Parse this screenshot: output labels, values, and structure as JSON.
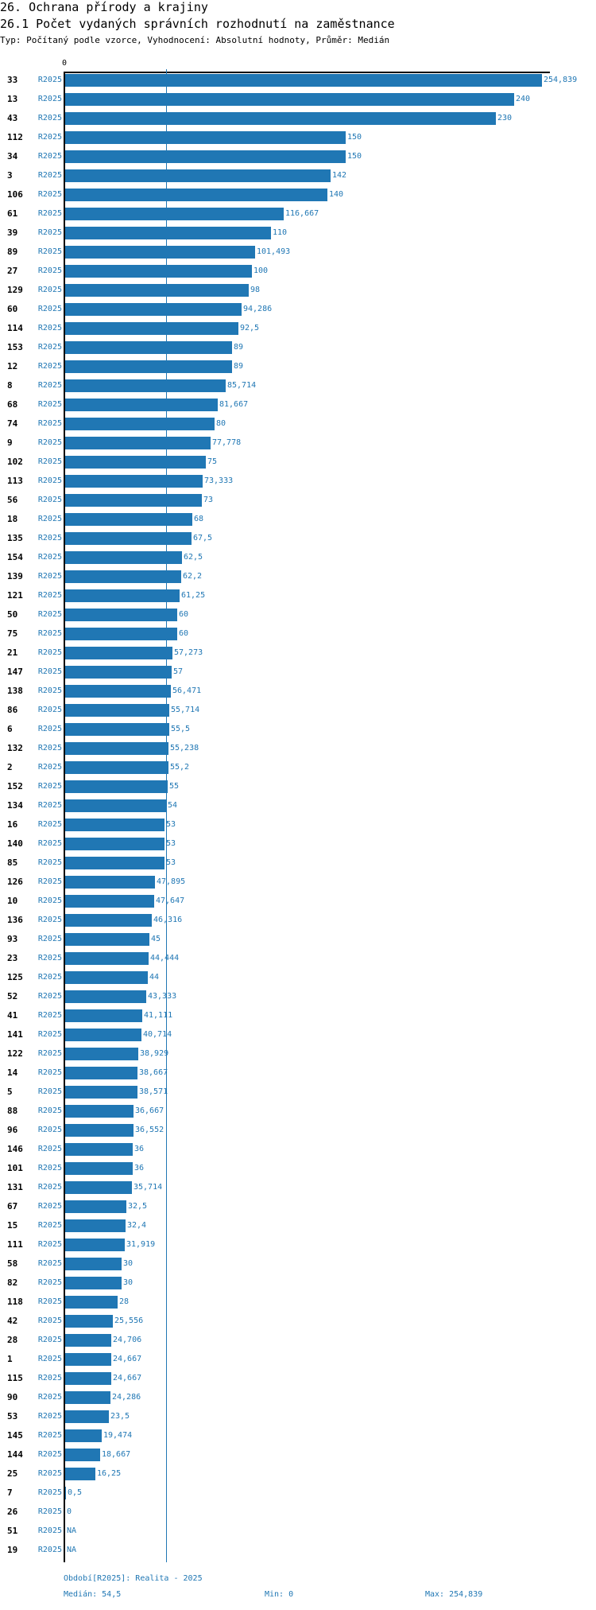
{
  "header": {
    "title": "26. Ochrana přírody a krajiny",
    "subtitle": "26.1 Počet vydaných správních rozhodnutí na zaměstnance",
    "meta": "Typ: Počítaný podle vzorce, Vyhodnocení: Absolutní hodnoty, Průměr: Medián"
  },
  "footer": {
    "period": "Období[R2025]: Realita - 2025",
    "median": "Medián: 54,5",
    "min": "Min: 0",
    "max": "Max: 254,839"
  },
  "colors": {
    "bar": "#2077b4",
    "axis": "#000000"
  },
  "chart_data": {
    "type": "bar",
    "orientation": "horizontal",
    "title": "26.1 Počet vydaných správních rozhodnutí na zaměstnance",
    "axis_tick": "0",
    "xlim": [
      0,
      254.839
    ],
    "median": 54.5,
    "min": 0,
    "max": 254.839,
    "rows": [
      {
        "id": "33",
        "period": "R2025",
        "label": "254,839"
      },
      {
        "id": "13",
        "period": "R2025",
        "label": "240"
      },
      {
        "id": "43",
        "period": "R2025",
        "label": "230"
      },
      {
        "id": "112",
        "period": "R2025",
        "label": "150"
      },
      {
        "id": "34",
        "period": "R2025",
        "label": "150"
      },
      {
        "id": "3",
        "period": "R2025",
        "label": "142"
      },
      {
        "id": "106",
        "period": "R2025",
        "label": "140"
      },
      {
        "id": "61",
        "period": "R2025",
        "label": "116,667"
      },
      {
        "id": "39",
        "period": "R2025",
        "label": "110"
      },
      {
        "id": "89",
        "period": "R2025",
        "label": "101,493"
      },
      {
        "id": "27",
        "period": "R2025",
        "label": "100"
      },
      {
        "id": "129",
        "period": "R2025",
        "label": "98"
      },
      {
        "id": "60",
        "period": "R2025",
        "label": "94,286"
      },
      {
        "id": "114",
        "period": "R2025",
        "label": "92,5"
      },
      {
        "id": "153",
        "period": "R2025",
        "label": "89"
      },
      {
        "id": "12",
        "period": "R2025",
        "label": "89"
      },
      {
        "id": "8",
        "period": "R2025",
        "label": "85,714"
      },
      {
        "id": "68",
        "period": "R2025",
        "label": "81,667"
      },
      {
        "id": "74",
        "period": "R2025",
        "label": "80"
      },
      {
        "id": "9",
        "period": "R2025",
        "label": "77,778"
      },
      {
        "id": "102",
        "period": "R2025",
        "label": "75"
      },
      {
        "id": "113",
        "period": "R2025",
        "label": "73,333"
      },
      {
        "id": "56",
        "period": "R2025",
        "label": "73"
      },
      {
        "id": "18",
        "period": "R2025",
        "label": "68"
      },
      {
        "id": "135",
        "period": "R2025",
        "label": "67,5"
      },
      {
        "id": "154",
        "period": "R2025",
        "label": "62,5"
      },
      {
        "id": "139",
        "period": "R2025",
        "label": "62,2"
      },
      {
        "id": "121",
        "period": "R2025",
        "label": "61,25"
      },
      {
        "id": "50",
        "period": "R2025",
        "label": "60"
      },
      {
        "id": "75",
        "period": "R2025",
        "label": "60"
      },
      {
        "id": "21",
        "period": "R2025",
        "label": "57,273"
      },
      {
        "id": "147",
        "period": "R2025",
        "label": "57"
      },
      {
        "id": "138",
        "period": "R2025",
        "label": "56,471"
      },
      {
        "id": "86",
        "period": "R2025",
        "label": "55,714"
      },
      {
        "id": "6",
        "period": "R2025",
        "label": "55,5"
      },
      {
        "id": "132",
        "period": "R2025",
        "label": "55,238"
      },
      {
        "id": "2",
        "period": "R2025",
        "label": "55,2"
      },
      {
        "id": "152",
        "period": "R2025",
        "label": "55"
      },
      {
        "id": "134",
        "period": "R2025",
        "label": "54"
      },
      {
        "id": "16",
        "period": "R2025",
        "label": "53"
      },
      {
        "id": "140",
        "period": "R2025",
        "label": "53"
      },
      {
        "id": "85",
        "period": "R2025",
        "label": "53"
      },
      {
        "id": "126",
        "period": "R2025",
        "label": "47,895"
      },
      {
        "id": "10",
        "period": "R2025",
        "label": "47,647"
      },
      {
        "id": "136",
        "period": "R2025",
        "label": "46,316"
      },
      {
        "id": "93",
        "period": "R2025",
        "label": "45"
      },
      {
        "id": "23",
        "period": "R2025",
        "label": "44,444"
      },
      {
        "id": "125",
        "period": "R2025",
        "label": "44"
      },
      {
        "id": "52",
        "period": "R2025",
        "label": "43,333"
      },
      {
        "id": "41",
        "period": "R2025",
        "label": "41,111"
      },
      {
        "id": "141",
        "period": "R2025",
        "label": "40,714"
      },
      {
        "id": "122",
        "period": "R2025",
        "label": "38,929"
      },
      {
        "id": "14",
        "period": "R2025",
        "label": "38,667"
      },
      {
        "id": "5",
        "period": "R2025",
        "label": "38,571"
      },
      {
        "id": "88",
        "period": "R2025",
        "label": "36,667"
      },
      {
        "id": "96",
        "period": "R2025",
        "label": "36,552"
      },
      {
        "id": "146",
        "period": "R2025",
        "label": "36"
      },
      {
        "id": "101",
        "period": "R2025",
        "label": "36"
      },
      {
        "id": "131",
        "period": "R2025",
        "label": "35,714"
      },
      {
        "id": "67",
        "period": "R2025",
        "label": "32,5"
      },
      {
        "id": "15",
        "period": "R2025",
        "label": "32,4"
      },
      {
        "id": "111",
        "period": "R2025",
        "label": "31,919"
      },
      {
        "id": "58",
        "period": "R2025",
        "label": "30"
      },
      {
        "id": "82",
        "period": "R2025",
        "label": "30"
      },
      {
        "id": "118",
        "period": "R2025",
        "label": "28"
      },
      {
        "id": "42",
        "period": "R2025",
        "label": "25,556"
      },
      {
        "id": "28",
        "period": "R2025",
        "label": "24,706"
      },
      {
        "id": "1",
        "period": "R2025",
        "label": "24,667"
      },
      {
        "id": "115",
        "period": "R2025",
        "label": "24,667"
      },
      {
        "id": "90",
        "period": "R2025",
        "label": "24,286"
      },
      {
        "id": "53",
        "period": "R2025",
        "label": "23,5"
      },
      {
        "id": "145",
        "period": "R2025",
        "label": "19,474"
      },
      {
        "id": "144",
        "period": "R2025",
        "label": "18,667"
      },
      {
        "id": "25",
        "period": "R2025",
        "label": "16,25"
      },
      {
        "id": "7",
        "period": "R2025",
        "label": "0,5"
      },
      {
        "id": "26",
        "period": "R2025",
        "label": "0"
      },
      {
        "id": "51",
        "period": "R2025",
        "label": "NA"
      },
      {
        "id": "19",
        "period": "R2025",
        "label": "NA"
      }
    ]
  }
}
